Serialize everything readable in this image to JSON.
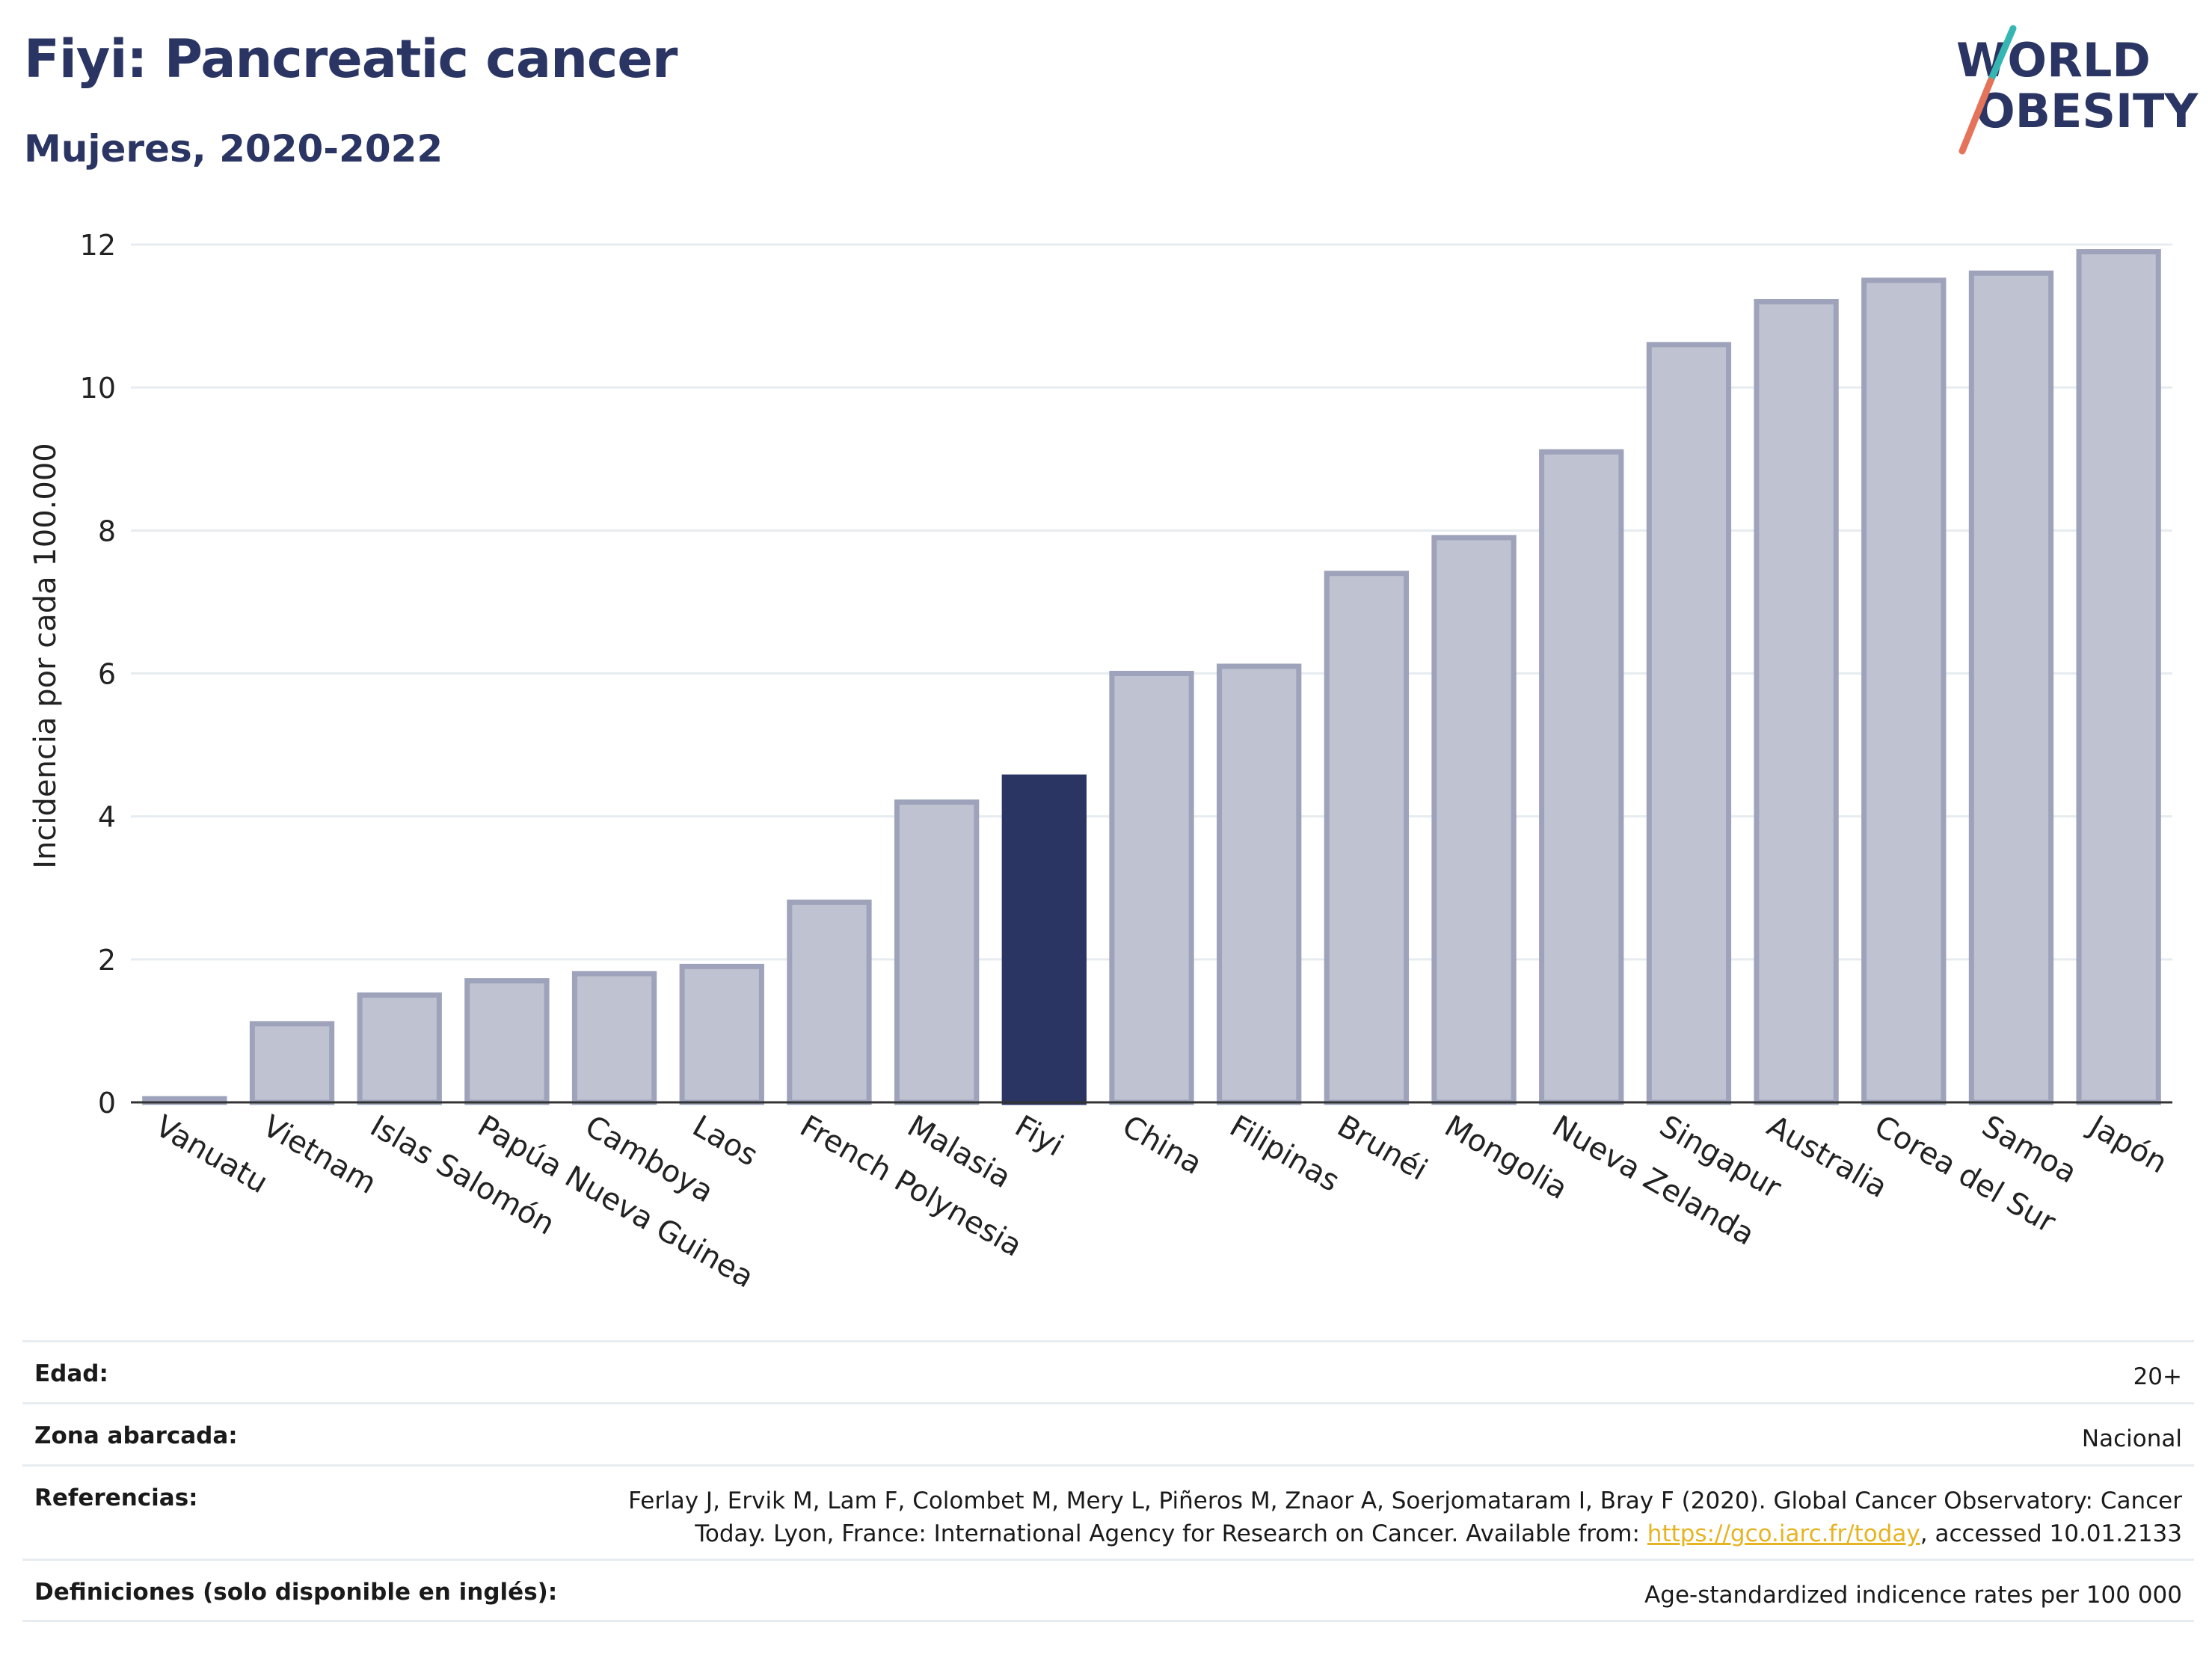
{
  "header": {
    "title": "Fiyi: Pancreatic cancer",
    "subtitle": "Mujeres, 2020-2022"
  },
  "logo": {
    "line1": "WORLD",
    "line2": "OBESITY",
    "colors": {
      "text": "#2b3563",
      "slash_top": "#36b6b3",
      "slash_bottom": "#e4735a"
    }
  },
  "colors": {
    "bar_fill": "#bfc2d0",
    "bar_stroke": "#9ea3bb",
    "highlight": "#2b3563",
    "grid": "#e6ecef",
    "axis": "#333333"
  },
  "chart_data": {
    "type": "bar",
    "ylabel": "Incidencia por cada 100.000",
    "ylim": [
      0,
      12
    ],
    "yticks": [
      0,
      2,
      4,
      6,
      8,
      10,
      12
    ],
    "highlight": "Fiyi",
    "categories": [
      "Vanuatu",
      "Vietnam",
      "Islas Salomón",
      "Papúa Nueva Guinea",
      "Camboya",
      "Laos",
      "French Polynesia",
      "Malasia",
      "Fiyi",
      "China",
      "Filipinas",
      "Brunéi",
      "Mongolia",
      "Nueva Zelanda",
      "Singapur",
      "Australia",
      "Corea del Sur",
      "Samoa",
      "Japón"
    ],
    "values": [
      0.05,
      1.1,
      1.5,
      1.7,
      1.8,
      1.9,
      2.8,
      4.2,
      4.55,
      6.0,
      6.1,
      7.4,
      7.9,
      9.1,
      10.6,
      11.2,
      11.5,
      11.6,
      11.9
    ]
  },
  "meta": {
    "edad": {
      "label": "Edad:",
      "value": "20+"
    },
    "zona": {
      "label": "Zona abarcada:",
      "value": "Nacional"
    },
    "referencias": {
      "label": "Referencias:",
      "line1": "Ferlay J, Ervik M, Lam F, Colombet M, Mery L, Piñeros M, Znaor A, Soerjomataram I, Bray F (2020). Global Cancer Observatory: Cancer",
      "line2_pre": "Today. Lyon, France: International Agency for Research on Cancer. Available from: ",
      "link": "https://gco.iarc.fr/today",
      "line2_post": ", accessed 10.01.2133"
    },
    "definiciones": {
      "label": "Definiciones (solo disponible en inglés):",
      "value": "Age-standardized indicence rates per 100 000"
    }
  }
}
